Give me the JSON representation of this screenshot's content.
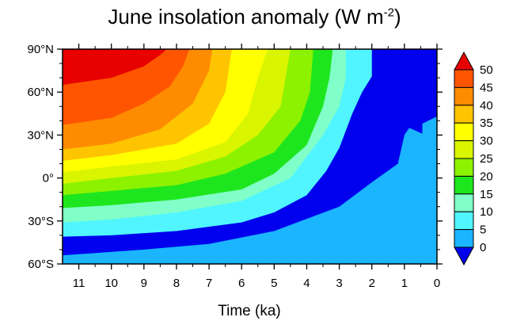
{
  "chart_data": {
    "type": "heatmap",
    "title": "June insolation anomaly (W m",
    "title_unit_exponent": "-2",
    "title_close": ")",
    "xlabel": "Time (ka)",
    "ylabel": "",
    "xlim": [
      11.5,
      0
    ],
    "ylim": [
      -60,
      90
    ],
    "x_ticks": [
      {
        "v": 11,
        "label": "11"
      },
      {
        "v": 10,
        "label": "10"
      },
      {
        "v": 9,
        "label": "9"
      },
      {
        "v": 8,
        "label": "8"
      },
      {
        "v": 7,
        "label": "7"
      },
      {
        "v": 6,
        "label": "6"
      },
      {
        "v": 5,
        "label": "5"
      },
      {
        "v": 4,
        "label": "4"
      },
      {
        "v": 3,
        "label": "3"
      },
      {
        "v": 2,
        "label": "2"
      },
      {
        "v": 1,
        "label": "1"
      },
      {
        "v": 0,
        "label": "0"
      }
    ],
    "y_ticks": [
      {
        "v": 90,
        "label": "90°N"
      },
      {
        "v": 60,
        "label": "60°N"
      },
      {
        "v": 30,
        "label": "30°N"
      },
      {
        "v": 0,
        "label": "0°"
      },
      {
        "v": -30,
        "label": "30°S"
      },
      {
        "v": -60,
        "label": "60°S"
      }
    ],
    "colorbar": {
      "levels": [
        "50",
        "45",
        "40",
        "35",
        "30",
        "25",
        "20",
        "15",
        "10",
        "5",
        "0"
      ],
      "colors": [
        "#e80000",
        "#ff5500",
        "#ff8c00",
        "#ffc400",
        "#ffff00",
        "#d9f500",
        "#8cf200",
        "#1ee61e",
        "#80ffc8",
        "#50f5ff",
        "#1ab4ff",
        "#0000ee"
      ]
    },
    "contours": [
      {
        "level": 0,
        "points": [
          [
            11.5,
            -54
          ],
          [
            9,
            -50
          ],
          [
            7,
            -46
          ],
          [
            5,
            -37
          ],
          [
            3,
            -20
          ],
          [
            2,
            -3
          ],
          [
            1.2,
            10
          ],
          [
            1,
            30
          ],
          [
            0.85,
            35
          ],
          [
            0.45,
            31
          ]
        ]
      },
      {
        "level": 5,
        "points": [
          [
            11.5,
            -41
          ],
          [
            10,
            -40
          ],
          [
            8,
            -37
          ],
          [
            6,
            -31
          ],
          [
            5,
            -24
          ],
          [
            4,
            -12
          ],
          [
            3.4,
            5
          ],
          [
            3,
            21
          ],
          [
            2.6,
            45
          ],
          [
            2.3,
            60
          ],
          [
            2,
            71
          ],
          [
            2,
            90
          ]
        ]
      },
      {
        "level": 10,
        "points": [
          [
            11.5,
            -31
          ],
          [
            10,
            -29
          ],
          [
            8,
            -24
          ],
          [
            6,
            -16
          ],
          [
            4.5,
            0
          ],
          [
            3.5,
            30
          ],
          [
            3,
            50
          ],
          [
            2.8,
            70
          ],
          [
            2.8,
            90
          ]
        ]
      },
      {
        "level": 15,
        "points": [
          [
            11.5,
            -21
          ],
          [
            10,
            -19
          ],
          [
            8,
            -15
          ],
          [
            6,
            -8
          ],
          [
            5,
            3
          ],
          [
            4,
            23
          ],
          [
            3.5,
            50
          ],
          [
            3.3,
            70
          ],
          [
            3.2,
            90
          ]
        ]
      },
      {
        "level": 20,
        "points": [
          [
            11.5,
            -12
          ],
          [
            10,
            -9
          ],
          [
            8,
            -5
          ],
          [
            6.5,
            3
          ],
          [
            5,
            18
          ],
          [
            4.2,
            40
          ],
          [
            3.9,
            60
          ],
          [
            3.8,
            90
          ]
        ]
      },
      {
        "level": 25,
        "points": [
          [
            11.5,
            -4
          ],
          [
            10,
            0
          ],
          [
            8,
            5
          ],
          [
            6.5,
            15
          ],
          [
            5.5,
            30
          ],
          [
            4.8,
            50
          ],
          [
            4.5,
            90
          ]
        ]
      },
      {
        "level": 30,
        "points": [
          [
            11.5,
            4
          ],
          [
            10,
            8
          ],
          [
            8,
            13
          ],
          [
            6.5,
            25
          ],
          [
            5.8,
            45
          ],
          [
            5.5,
            70
          ],
          [
            5.2,
            90
          ]
        ]
      },
      {
        "level": 35,
        "points": [
          [
            11.5,
            12
          ],
          [
            10,
            16
          ],
          [
            8,
            24
          ],
          [
            7,
            38
          ],
          [
            6.5,
            60
          ],
          [
            6.3,
            90
          ]
        ]
      },
      {
        "level": 40,
        "points": [
          [
            11.5,
            20
          ],
          [
            10,
            24
          ],
          [
            8.5,
            34
          ],
          [
            7.5,
            52
          ],
          [
            7,
            75
          ],
          [
            6.9,
            90
          ]
        ]
      },
      {
        "level": 45,
        "points": [
          [
            11.5,
            37
          ],
          [
            10,
            42
          ],
          [
            9,
            52
          ],
          [
            8.2,
            64
          ],
          [
            7.8,
            78
          ],
          [
            7.6,
            90
          ]
        ]
      },
      {
        "level": 50,
        "points": [
          [
            11.5,
            65
          ],
          [
            10,
            70
          ],
          [
            9,
            78
          ],
          [
            8.5,
            86
          ],
          [
            8.3,
            90
          ]
        ]
      }
    ],
    "grid": false,
    "legend": "right colorbar with triangle end arrows"
  }
}
